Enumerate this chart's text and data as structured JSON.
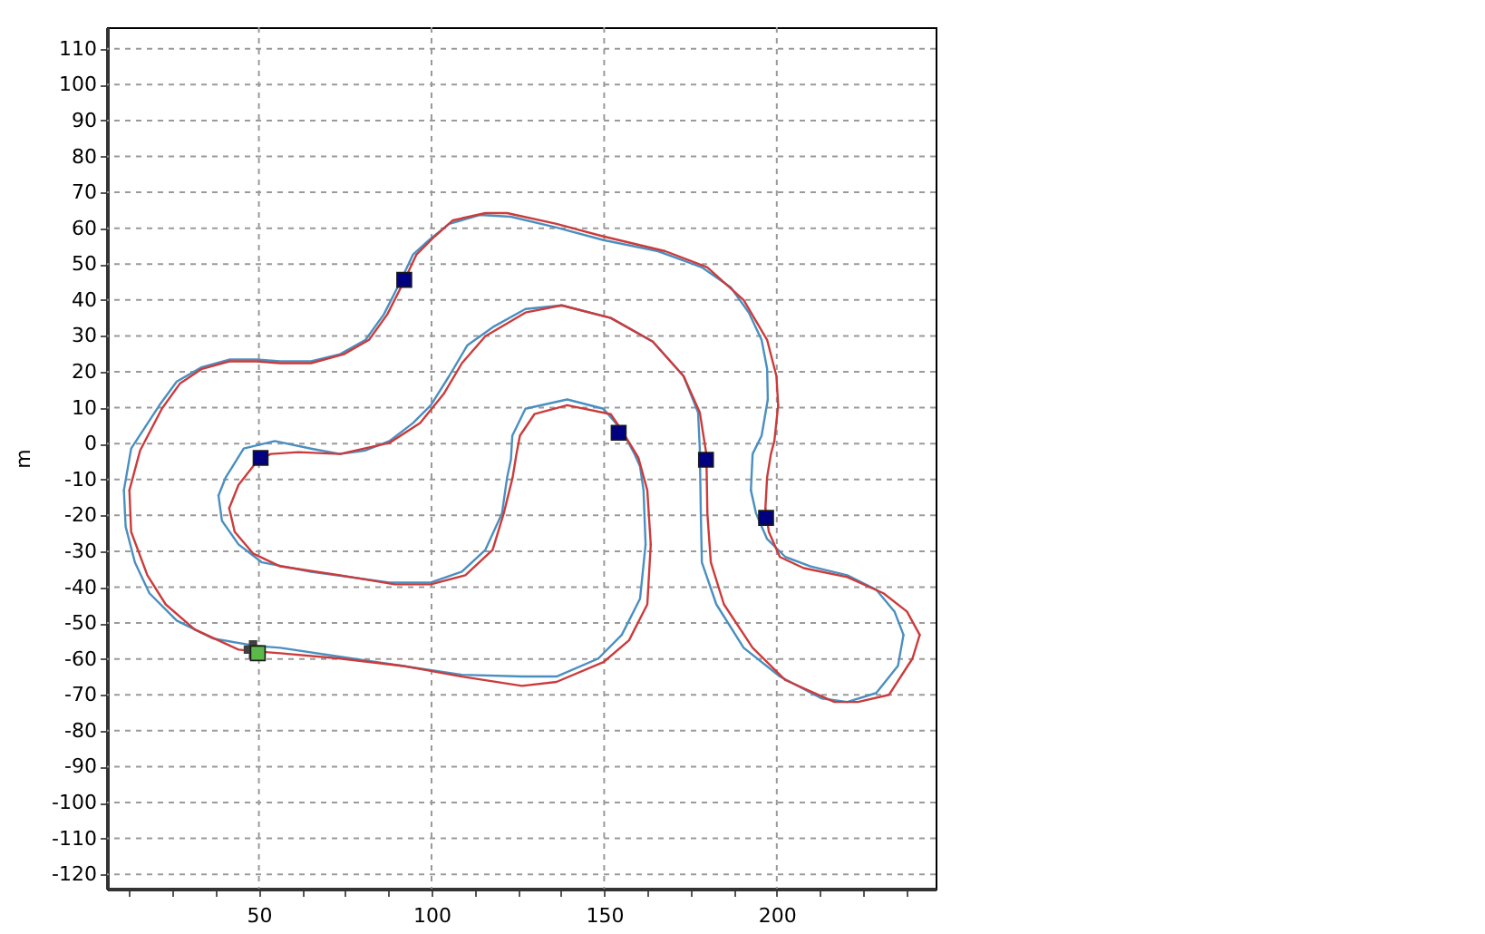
{
  "chart_data": {
    "type": "line",
    "ylabel": "m",
    "xlim": [
      6,
      246
    ],
    "ylim": [
      -124,
      116
    ],
    "xticks": [
      {
        "value": 12.5,
        "label": null
      },
      {
        "value": 25,
        "label": null
      },
      {
        "value": 37.5,
        "label": null
      },
      50,
      {
        "value": 62.5,
        "label": null
      },
      {
        "value": 75,
        "label": null
      },
      {
        "value": 87.5,
        "label": null
      },
      100,
      {
        "value": 112.5,
        "label": null
      },
      {
        "value": 125,
        "label": null
      },
      {
        "value": 137.5,
        "label": null
      },
      150,
      {
        "value": 162.5,
        "label": null
      },
      {
        "value": 175,
        "label": null
      },
      {
        "value": 187.5,
        "label": null
      },
      200,
      {
        "value": 212.5,
        "label": null
      },
      {
        "value": 225,
        "label": null
      },
      {
        "value": 237.5,
        "label": null
      }
    ],
    "yticks": [
      -120,
      -110,
      -100,
      -90,
      -80,
      -70,
      -60,
      -50,
      -40,
      -30,
      -20,
      -10,
      0,
      10,
      20,
      30,
      40,
      50,
      60,
      70,
      80,
      90,
      100,
      110
    ],
    "grid": true,
    "line_style": "solid",
    "series": [
      {
        "color": "#4a8fc0",
        "x": [
          49.3,
          56.2,
          73.5,
          91.4,
          108.8,
          126.2,
          136.2,
          148.3,
          155.1,
          160.4,
          162.0
        ],
        "values": [
          -56.4,
          -56.9,
          -59.4,
          -61.9,
          -64.4,
          -64.9,
          -64.9,
          -59.9,
          -53.3,
          -43.2,
          -28.1
        ]
      },
      {
        "color": "#4a8fc0",
        "x": [
          162.0,
          161.4,
          160.4,
          158.8,
          155.1,
          149.8,
          139.3,
          127.2,
          123.4,
          123.0,
          121.9,
          120.4,
          115.6,
          108.8,
          99.8,
          87.8,
          65.1,
          50.9,
          44.1,
          39.3,
          38.3
        ],
        "values": [
          -28.1,
          -13.0,
          -6.4,
          -2.9,
          3.7,
          9.7,
          12.3,
          9.7,
          2.2,
          -4.4,
          -9.4,
          -19.5,
          -29.6,
          -35.7,
          -38.7,
          -38.7,
          -35.7,
          -33.1,
          -28.1,
          -21.5,
          -14.5
        ]
      },
      {
        "color": "#4a8fc0",
        "x": [
          38.3,
          40.4,
          45.6,
          54.6,
          65.1,
          73.5,
          80.9,
          87.8,
          94.6,
          99.8,
          105.1,
          110.4,
          117.7,
          127.2,
          137.7,
          151.9,
          164.1,
          173.0,
          177.2,
          177.7,
          178.0,
          178.3,
          182.5,
          190.4,
          200.9,
          213.0,
          220.4,
          228.8,
          235.1,
          236.7
        ],
        "values": [
          -14.5,
          -9.4,
          -1.4,
          0.7,
          -1.4,
          -2.9,
          -1.9,
          0.7,
          5.7,
          10.7,
          18.8,
          27.4,
          32.4,
          37.5,
          38.5,
          35.0,
          28.4,
          18.8,
          8.7,
          -1.4,
          -19.5,
          -33.1,
          -44.8,
          -56.9,
          -64.9,
          -71.0,
          -72.0,
          -69.5,
          -61.9,
          -53.3
        ]
      },
      {
        "color": "#4a8fc0",
        "x": [
          236.7,
          234.1,
          228.8,
          220.4,
          209.8,
          202.5,
          197.2,
          194.0,
          192.5
        ],
        "values": [
          -53.3,
          -46.8,
          -40.7,
          -36.7,
          -34.2,
          -31.6,
          -26.6,
          -19.5,
          -13.0
        ]
      },
      {
        "color": "#4a8fc0",
        "x": [
          192.5,
          193.0,
          195.6,
          197.4
        ],
        "values": [
          -13.0,
          -2.9,
          2.2,
          12.3
        ]
      },
      {
        "color": "#4a8fc0",
        "x": [
          197.4,
          197.2,
          195.6,
          191.9,
          186.7,
          178.3,
          165.6,
          149.8,
          136.2,
          123.0,
          114.0,
          105.1,
          99.3,
          94.6,
          90.4,
          86.2,
          80.9,
          73.5,
          65.1,
          56.2,
          49.3,
          41.4,
          33.5,
          26.2,
          21.2,
          13.0,
          10.9
        ],
        "values": [
          12.3,
          20.8,
          28.9,
          36.5,
          43.5,
          49.1,
          53.6,
          56.7,
          60.2,
          63.2,
          63.7,
          61.2,
          56.7,
          52.6,
          44.0,
          36.0,
          28.9,
          24.9,
          22.9,
          22.9,
          23.4,
          23.4,
          21.3,
          17.3,
          10.7,
          -1.4,
          -13.0
        ]
      },
      {
        "color": "#4a8fc0",
        "x": [
          10.9,
          11.4,
          14.1,
          18.3,
          26.2,
          36.7,
          49.3
        ],
        "values": [
          -13.0,
          -23.1,
          -33.1,
          -41.7,
          -49.3,
          -54.3,
          -56.4
        ]
      },
      {
        "color": "#cc3b3b",
        "x": [
          49.3,
          56.2,
          73.5,
          91.4,
          108.8,
          126.2,
          136.2,
          149.8,
          157.2,
          162.5,
          163.5
        ],
        "values": [
          -57.9,
          -58.4,
          -59.9,
          -61.9,
          -64.9,
          -67.5,
          -66.4,
          -60.9,
          -54.8,
          -44.8,
          -28.1
        ]
      },
      {
        "color": "#cc3b3b",
        "x": [
          163.5,
          162.5,
          159.9,
          155.1,
          151.9,
          139.3,
          129.8,
          125.6,
          124.6,
          123.5,
          120.9,
          117.7,
          109.8,
          99.8,
          89.3,
          73.5,
          56.2,
          48.3,
          43.0,
          41.4
        ],
        "values": [
          -28.1,
          -13.0,
          -3.9,
          3.7,
          8.2,
          10.7,
          8.2,
          2.2,
          -2.9,
          -9.4,
          -19.5,
          -29.6,
          -36.7,
          -39.2,
          -39.2,
          -36.7,
          -34.2,
          -30.6,
          -24.6,
          -18.0
        ]
      },
      {
        "color": "#cc3b3b",
        "x": [
          41.4,
          44.1,
          49.9,
          53.5,
          61.4,
          73.5,
          87.8,
          96.7,
          103.5,
          108.8,
          115.6,
          127.2,
          137.7,
          151.9,
          164.1,
          173.0,
          177.7,
          179.6,
          179.9,
          180.9,
          184.7,
          193.0,
          202.5,
          216.7,
          223.5,
          232.5,
          239.3,
          241.4
        ],
        "values": [
          -18.0,
          -11.5,
          -4.4,
          -2.9,
          -2.4,
          -2.9,
          0.2,
          5.7,
          13.8,
          22.4,
          29.9,
          36.5,
          38.5,
          35.0,
          28.4,
          18.8,
          8.7,
          -2.9,
          -19.5,
          -33.1,
          -44.8,
          -56.9,
          -65.9,
          -72.0,
          -72.0,
          -70.0,
          -59.9,
          -53.3
        ]
      },
      {
        "color": "#cc3b3b",
        "x": [
          241.4,
          237.7,
          230.9,
          220.4,
          207.8,
          200.9,
          197.7,
          196.7
        ],
        "values": [
          -53.3,
          -46.8,
          -41.7,
          -37.2,
          -34.7,
          -31.6,
          -24.6,
          -18.0
        ]
      },
      {
        "color": "#cc3b3b",
        "x": [
          196.7,
          197.2,
          198.3,
          199.3,
          200.4
        ],
        "values": [
          -18.0,
          -9.4,
          -2.9,
          0.7,
          10.7
        ]
      },
      {
        "color": "#cc3b3b",
        "x": [
          200.4,
          199.9,
          197.2,
          190.4,
          179.9,
          167.7,
          149.8,
          136.2,
          121.9,
          115.6,
          106.2,
          100.9,
          95.6,
          91.4,
          87.2,
          81.9,
          74.6,
          65.1,
          56.2,
          49.3,
          41.4,
          33.5,
          27.2,
          21.9,
          15.6,
          12.5
        ],
        "values": [
          10.7,
          18.8,
          28.9,
          40.0,
          49.1,
          53.6,
          57.7,
          61.2,
          64.2,
          64.2,
          62.2,
          57.7,
          52.6,
          44.0,
          36.0,
          28.9,
          24.9,
          22.4,
          22.4,
          22.9,
          22.9,
          20.8,
          16.8,
          9.7,
          -1.9,
          -13.0
        ]
      },
      {
        "color": "#cc3b3b",
        "x": [
          12.5,
          13.0,
          17.7,
          23.0,
          31.4,
          44.1,
          49.3
        ],
        "values": [
          -13.0,
          -24.6,
          -36.7,
          -44.8,
          -51.8,
          -57.4,
          -57.9
        ]
      },
      {
        "type": "scatter",
        "marker": "square",
        "color": "#000080",
        "x": [
          92.1,
          50.5,
          154.2,
          179.5,
          196.9
        ],
        "values": [
          45.6,
          -4.0,
          3.0,
          -4.5,
          -20.7
        ]
      },
      {
        "type": "scatter",
        "marker": "cross",
        "color": "#404040",
        "x": [
          48.3
        ],
        "values": [
          -57.4
        ]
      },
      {
        "type": "scatter",
        "marker": "square",
        "color": "#5cb848",
        "x": [
          49.7
        ],
        "values": [
          -58.4
        ]
      }
    ]
  }
}
